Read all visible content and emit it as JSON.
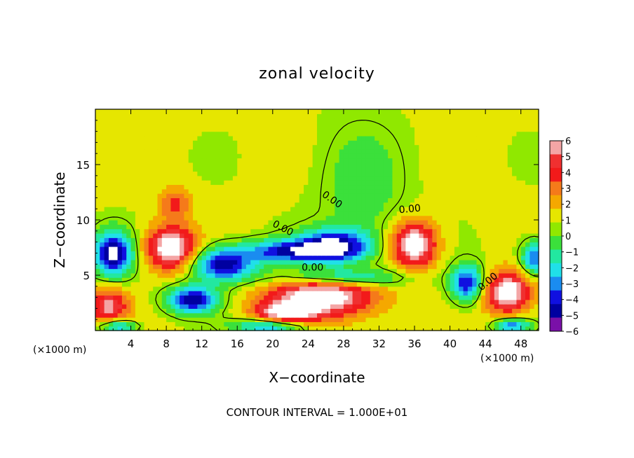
{
  "chart_data": {
    "type": "heatmap",
    "title": "zonal velocity",
    "xlabel": "X−coordinate",
    "ylabel": "Z−coordinate",
    "x_unit_left": "(×1000 m)",
    "x_unit_right": "(×1000 m)",
    "footer": "CONTOUR INTERVAL = 1.000E+01",
    "xlim": [
      0,
      50
    ],
    "ylim": [
      0,
      20
    ],
    "x_ticks": [
      4,
      8,
      12,
      16,
      20,
      24,
      28,
      32,
      36,
      40,
      44,
      48
    ],
    "x_tick_labels": [
      "4",
      "8",
      "12",
      "16",
      "20",
      "24",
      "28",
      "32",
      "36",
      "40",
      "44",
      "48"
    ],
    "y_ticks": [
      5,
      10,
      15
    ],
    "y_tick_labels": [
      "5",
      "10",
      "15"
    ],
    "colorbar": {
      "levels": [
        6,
        5,
        4,
        3,
        2,
        1,
        0,
        -1,
        -2,
        -3,
        -4,
        -5,
        -6
      ],
      "labels": [
        "6",
        "5",
        "4",
        "3",
        "2",
        "1",
        "0",
        "−1",
        "−2",
        "−3",
        "−4",
        "−5",
        "−6"
      ],
      "colors": [
        "#f4a5a5",
        "#f03030",
        "#f21a1a",
        "#f57a1a",
        "#f5a800",
        "#e6e600",
        "#90e800",
        "#3be03b",
        "#22e8a0",
        "#20e0e8",
        "#1a8cf0",
        "#1010e0",
        "#0000a0",
        "#7a10a8"
      ]
    },
    "contour_labels": [
      {
        "text": "0.00",
        "x": 21.0,
        "y": 9.0,
        "angle": 28
      },
      {
        "text": "0.00",
        "x": 26.5,
        "y": 11.6,
        "angle": 35
      },
      {
        "text": "0.00",
        "x": 35.5,
        "y": 10.7,
        "angle": -5
      },
      {
        "text": "0.00",
        "x": 24.5,
        "y": 5.4,
        "angle": 0
      },
      {
        "text": "0.00",
        "x": 44.5,
        "y": 4.2,
        "angle": -40
      }
    ],
    "blobs": [
      {
        "x": 2.0,
        "y": 7.0,
        "v": -7,
        "rx": 2.2,
        "ry": 2.0
      },
      {
        "x": 8.5,
        "y": 7.5,
        "v": 7,
        "rx": 2.8,
        "ry": 1.9
      },
      {
        "x": 14.5,
        "y": 6.0,
        "v": -6.5,
        "rx": 3.5,
        "ry": 1.5
      },
      {
        "x": 11.0,
        "y": 2.8,
        "v": -6.5,
        "rx": 2.8,
        "ry": 1.2
      },
      {
        "x": 21.5,
        "y": 7.2,
        "v": -5.5,
        "rx": 4.5,
        "ry": 1.0
      },
      {
        "x": 27.0,
        "y": 7.6,
        "v": -7,
        "rx": 4.0,
        "ry": 1.5
      },
      {
        "x": 25.5,
        "y": 3.2,
        "v": 7,
        "rx": 6.0,
        "ry": 2.0
      },
      {
        "x": 21.0,
        "y": 1.4,
        "v": 6,
        "rx": 3.5,
        "ry": 1.0
      },
      {
        "x": 36.0,
        "y": 7.8,
        "v": 7,
        "rx": 2.4,
        "ry": 2.0
      },
      {
        "x": 42.0,
        "y": 4.3,
        "v": -6,
        "rx": 1.8,
        "ry": 1.6
      },
      {
        "x": 46.5,
        "y": 3.5,
        "v": 7,
        "rx": 2.6,
        "ry": 1.8
      },
      {
        "x": 1.5,
        "y": 2.2,
        "v": 5,
        "rx": 2.2,
        "ry": 1.6
      },
      {
        "x": 20.0,
        "y": 0.5,
        "v": -6,
        "rx": 4.0,
        "ry": 0.8
      },
      {
        "x": 2.5,
        "y": 0.4,
        "v": -5,
        "rx": 2.0,
        "ry": 0.6
      },
      {
        "x": 47.0,
        "y": 0.5,
        "v": -5,
        "rx": 2.0,
        "ry": 0.6
      },
      {
        "x": 9.0,
        "y": 11.5,
        "v": 3,
        "rx": 1.8,
        "ry": 1.5
      },
      {
        "x": 30.0,
        "y": 13.0,
        "v": -1.8,
        "rx": 4.5,
        "ry": 5.5
      },
      {
        "x": 27.0,
        "y": 4.8,
        "v": -5,
        "rx": 7.0,
        "ry": 0.8
      },
      {
        "x": 49.5,
        "y": 6.5,
        "v": -5,
        "rx": 1.5,
        "ry": 1.5
      }
    ]
  }
}
